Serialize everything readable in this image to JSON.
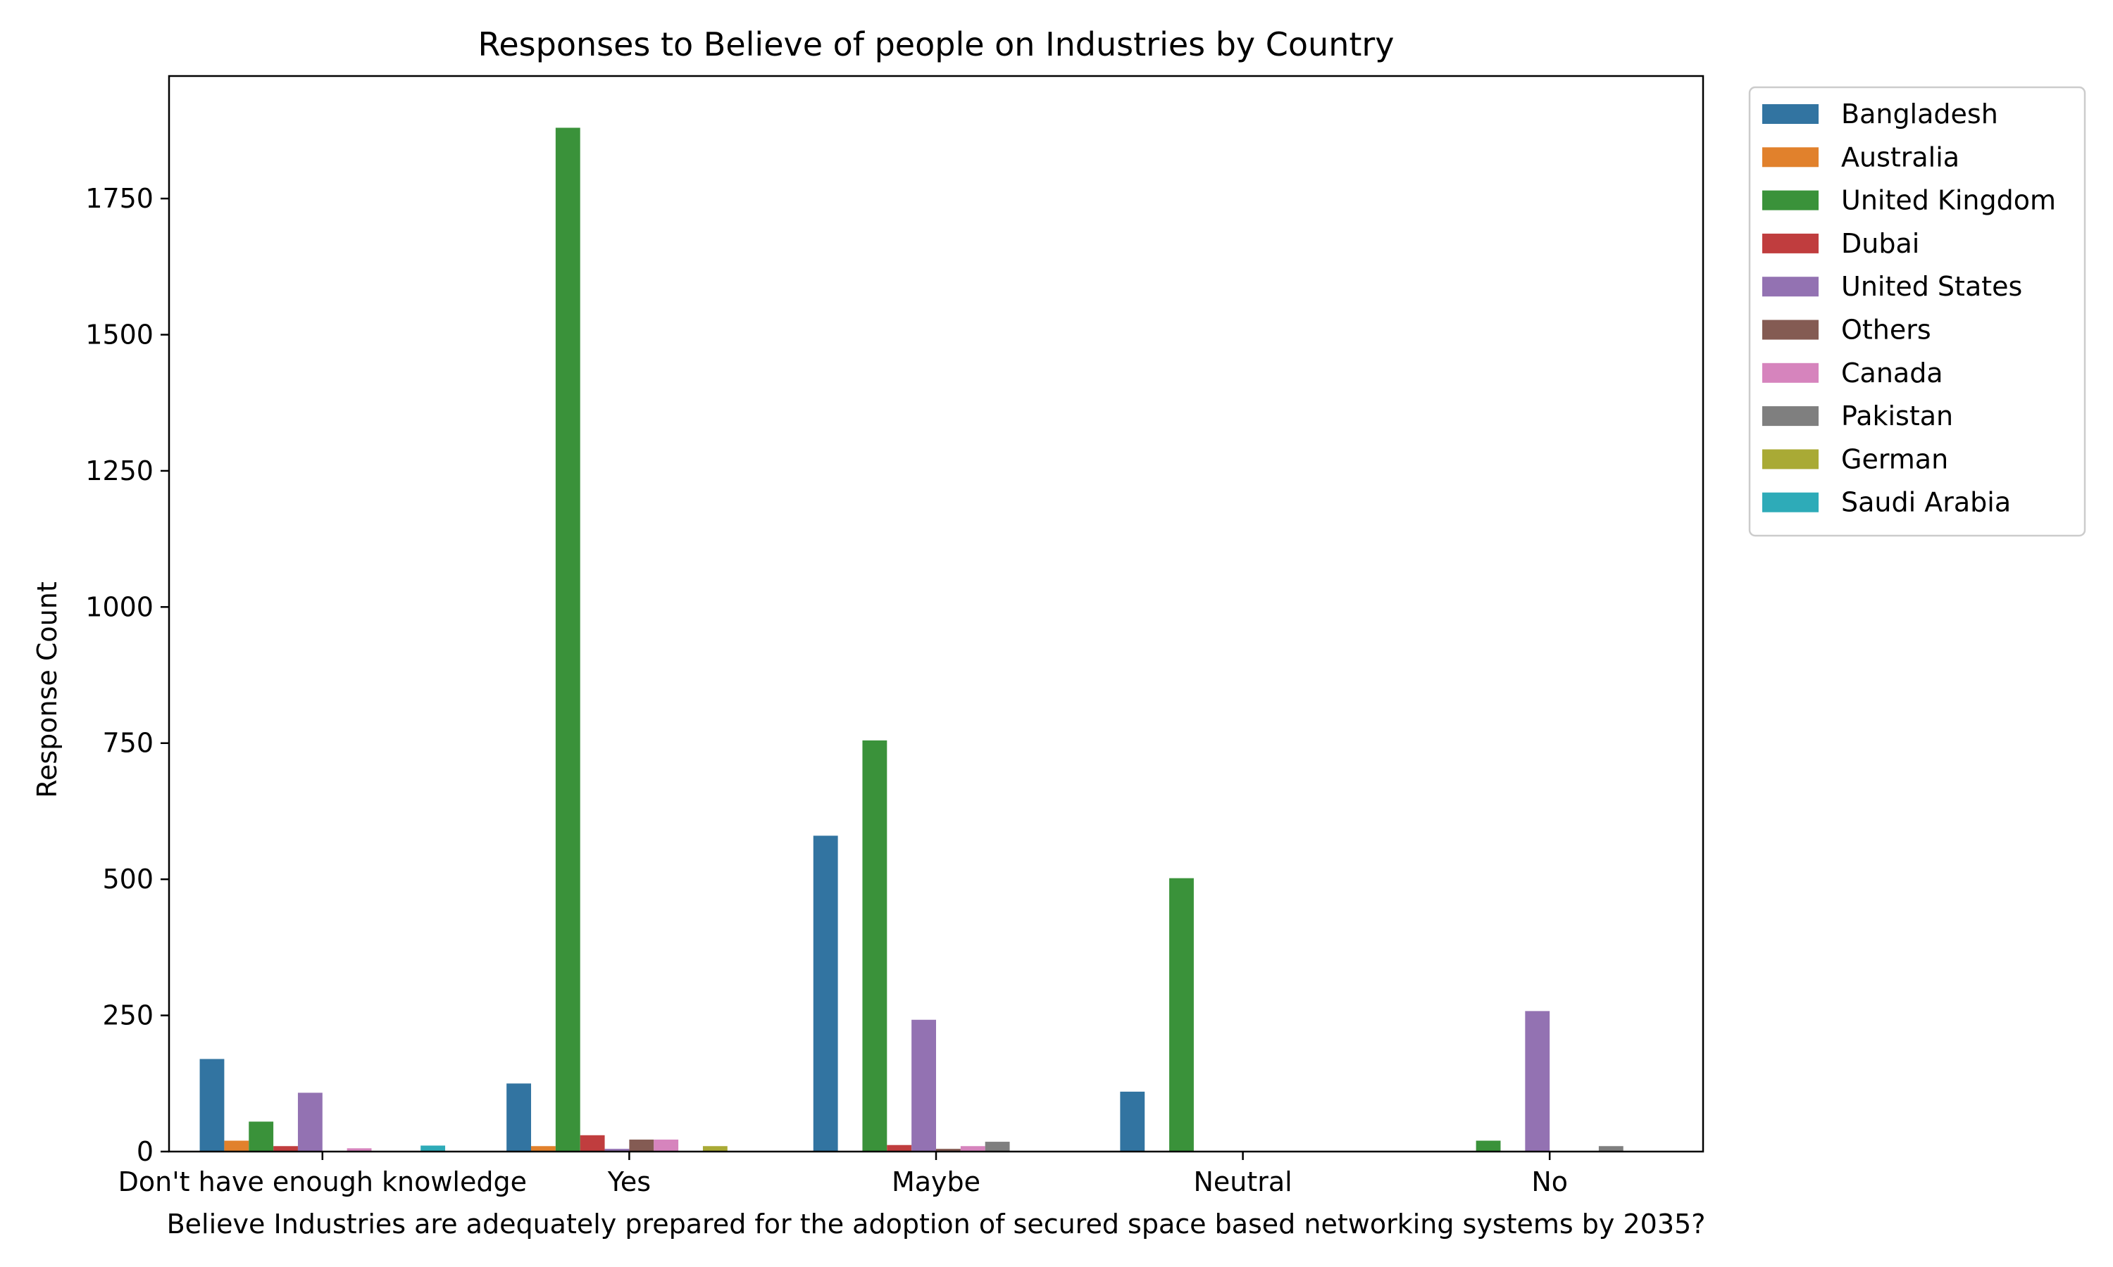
{
  "chart_data": {
    "type": "bar",
    "title": "Responses to Believe of people on Industries by Country",
    "xlabel": "Believe Industries are adequately prepared for the adoption of secured space based networking systems by 2035?",
    "ylabel": "Response Count",
    "ylim": [
      0,
      1975
    ],
    "yticks": [
      0,
      250,
      500,
      750,
      1000,
      1250,
      1500,
      1750
    ],
    "categories": [
      "Don't have enough knowledge",
      "Yes",
      "Maybe",
      "Neutral",
      "No"
    ],
    "legend": {
      "placement": "outside-right-top"
    },
    "grid": false,
    "series": [
      {
        "name": "Bangladesh",
        "color": "#3274a1",
        "values": [
          170,
          125,
          580,
          110,
          0
        ]
      },
      {
        "name": "Australia",
        "color": "#e1812c",
        "values": [
          20,
          10,
          0,
          0,
          0
        ]
      },
      {
        "name": "United Kingdom",
        "color": "#3a923a",
        "values": [
          55,
          1880,
          755,
          502,
          20
        ]
      },
      {
        "name": "Dubai",
        "color": "#c03d3e",
        "values": [
          10,
          30,
          12,
          0,
          0
        ]
      },
      {
        "name": "United States",
        "color": "#9372b2",
        "values": [
          108,
          5,
          242,
          0,
          258
        ]
      },
      {
        "name": "Others",
        "color": "#845b53",
        "values": [
          0,
          22,
          5,
          0,
          0
        ]
      },
      {
        "name": "Canada",
        "color": "#d684bd",
        "values": [
          6,
          22,
          10,
          0,
          0
        ]
      },
      {
        "name": "Pakistan",
        "color": "#7f7f7f",
        "values": [
          0,
          0,
          18,
          0,
          10
        ]
      },
      {
        "name": "German",
        "color": "#a9aa35",
        "values": [
          0,
          10,
          0,
          0,
          0
        ]
      },
      {
        "name": "Saudi Arabia",
        "color": "#2eabb8",
        "values": [
          11,
          0,
          0,
          0,
          0
        ]
      }
    ]
  }
}
